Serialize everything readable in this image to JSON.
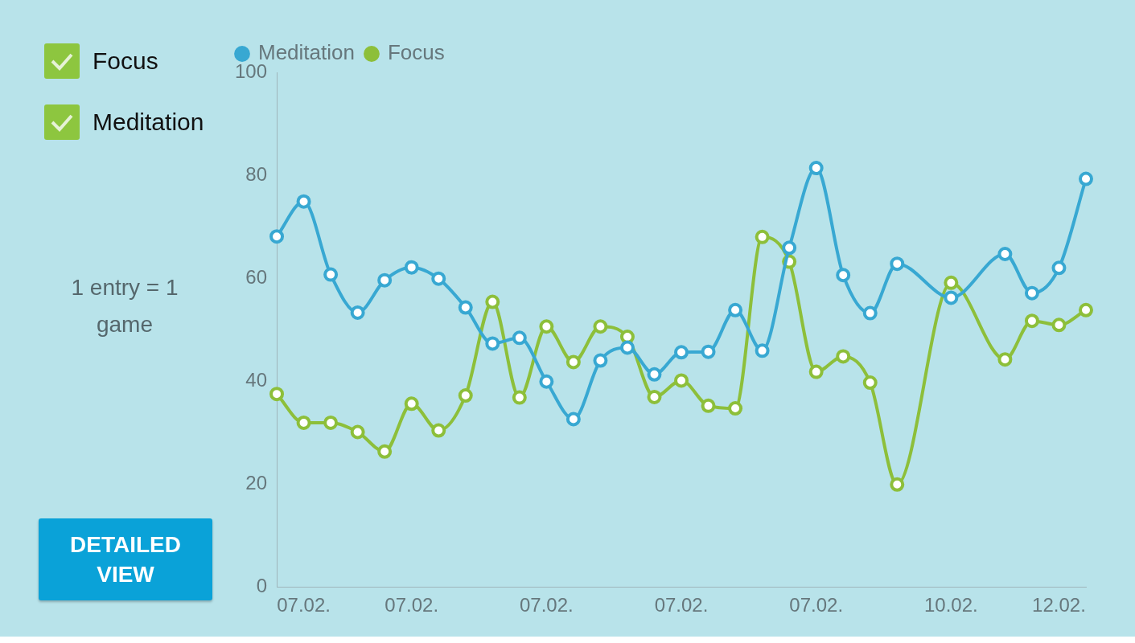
{
  "chart_data": {
    "type": "line",
    "legend": "top",
    "marker": "circle",
    "line_style": "solid",
    "grid": false,
    "annotations": [
      "1 entry = 1 game",
      "DETAILED VIEW"
    ],
    "categories": [
      null,
      "07.02.",
      null,
      null,
      null,
      "07.02.",
      null,
      null,
      null,
      null,
      "07.02.",
      null,
      null,
      null,
      null,
      "07.02.",
      null,
      null,
      null,
      null,
      "07.02.",
      null,
      null,
      null,
      null,
      "10.02.",
      null,
      null,
      null,
      "12.02.",
      null
    ],
    "ylim": [
      0,
      100
    ],
    "yticks": [
      0,
      20,
      40,
      60,
      80,
      100
    ],
    "series": [
      {
        "name": "Meditation",
        "color": "#38a8d2",
        "values": [
          68.1,
          74.9,
          60.7,
          53.3,
          59.6,
          62.1,
          59.9,
          54.3,
          47.3,
          48.4,
          39.9,
          32.6,
          44,
          46.5,
          41.3,
          45.6,
          45.7,
          53.8,
          45.9,
          65.9,
          81.4,
          60.6,
          53.2,
          62.8,
          null,
          56.2,
          null,
          64.7,
          57.1,
          62,
          79.3
        ]
      },
      {
        "name": "Focus",
        "color": "#8dbf3a",
        "values": [
          37.5,
          31.9,
          31.9,
          30.1,
          26.3,
          35.6,
          30.4,
          37.2,
          55.4,
          36.8,
          50.6,
          43.7,
          50.6,
          48.6,
          36.9,
          40.1,
          35.2,
          34.7,
          68,
          63.2,
          41.8,
          44.8,
          39.7,
          19.9,
          null,
          59.1,
          null,
          44.2,
          51.7,
          50.9,
          53.8
        ]
      }
    ]
  }
}
